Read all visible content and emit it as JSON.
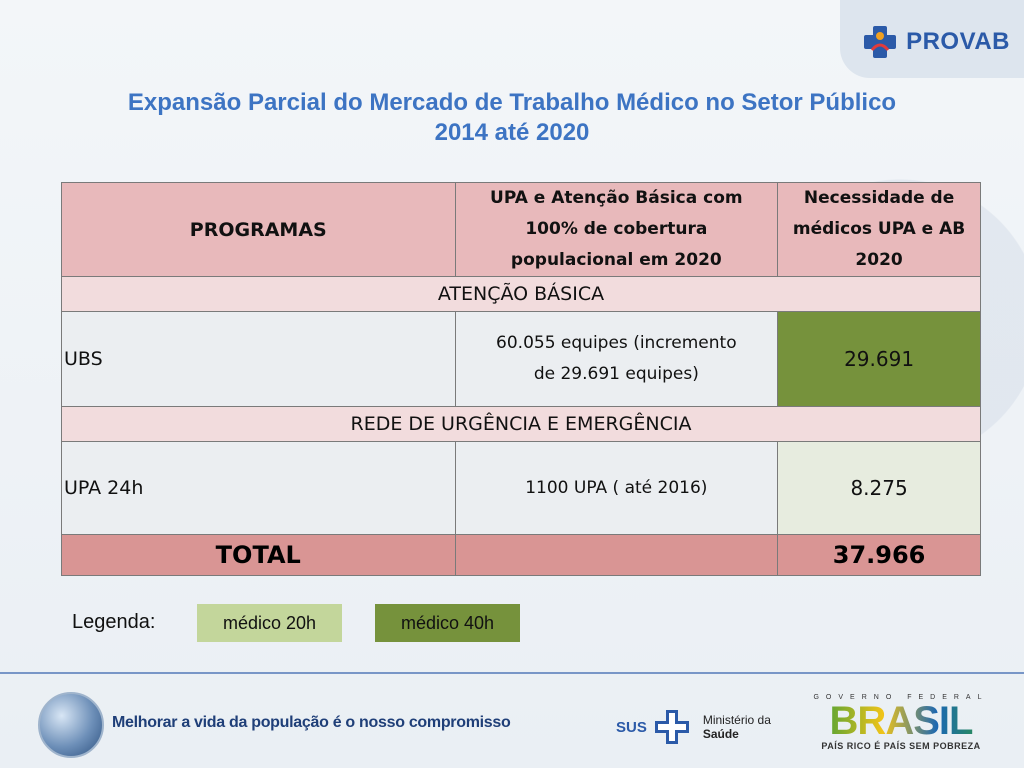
{
  "brand": {
    "provab": "PROVAB"
  },
  "title": {
    "line1": "Expansão Parcial do Mercado de Trabalho Médico no Setor Público",
    "line2": "2014 até 2020"
  },
  "table": {
    "headers": {
      "programs": "PROGRAMAS",
      "coverage_l1": "UPA e Atenção Básica com",
      "coverage_l2": "100% de cobertura",
      "coverage_l3": "populacional em 2020",
      "need_l1": "Necessidade de",
      "need_l2": "médicos UPA e AB",
      "need_l3": "2020"
    },
    "section1": "ATENÇÃO BÁSICA",
    "ubs": {
      "label": "UBS",
      "detail_l1": "60.055 equipes (incremento",
      "detail_l2": "de 29.691 equipes)",
      "value": "29.691"
    },
    "section2": "REDE DE URGÊNCIA E EMERGÊNCIA",
    "upa": {
      "label": "UPA 24h",
      "detail": "1100 UPA ( até 2016)",
      "value": "8.275"
    },
    "total": {
      "label": "TOTAL",
      "value": "37.966"
    }
  },
  "legend": {
    "label": "Legenda:",
    "item1": "médico 20h",
    "item2": "médico 40h",
    "color1": "#c3d69b",
    "color2": "#76923c"
  },
  "footer": {
    "slogan": "Melhorar a vida da população é o nosso compromisso",
    "sus": "SUS",
    "ministry_l1": "Ministério da",
    "ministry_l2": "Saúde",
    "gov": "GOVERNO FEDERAL",
    "brasil": "BRASIL",
    "brasil_slogan": "PAÍS RICO É PAÍS SEM POBREZA"
  }
}
